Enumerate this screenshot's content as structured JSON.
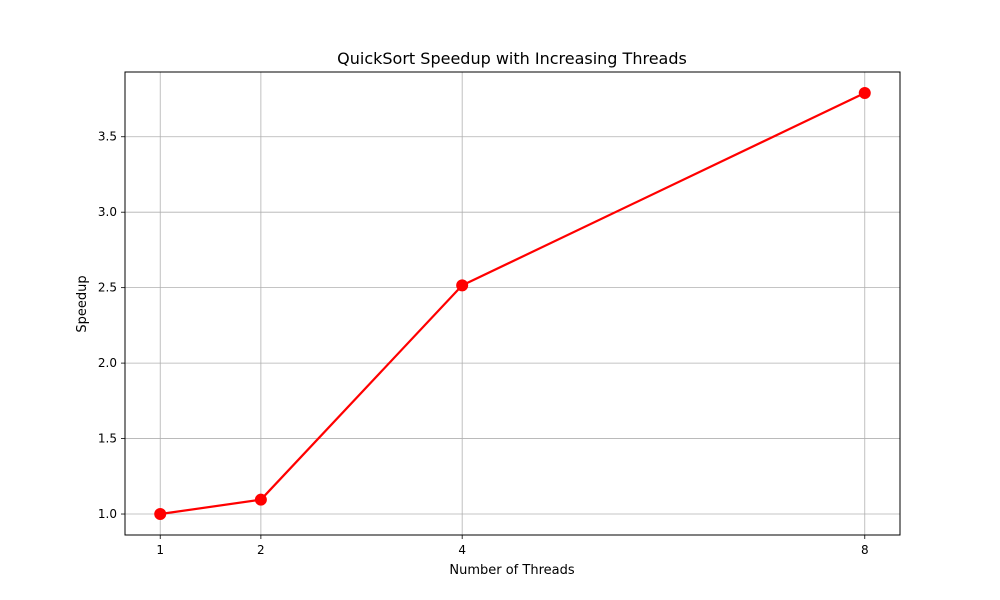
{
  "chart_data": {
    "type": "line",
    "title": "QuickSort Speedup with Increasing Threads",
    "xlabel": "Number of Threads",
    "ylabel": "Speedup",
    "x": [
      1,
      2,
      4,
      8
    ],
    "series": [
      {
        "values": [
          1.0,
          1.095,
          2.515,
          3.79
        ],
        "color": "#ff0000",
        "marker": "circle"
      }
    ],
    "xticks": [
      1,
      2,
      4,
      8
    ],
    "xtick_labels": [
      "1",
      "2",
      "4",
      "8"
    ],
    "yticks": [
      1.0,
      1.5,
      2.0,
      2.5,
      3.0,
      3.5
    ],
    "ytick_labels": [
      "1.0",
      "1.5",
      "2.0",
      "2.5",
      "3.0",
      "3.5"
    ],
    "xlim": [
      0.65,
      8.35
    ],
    "ylim": [
      0.861,
      3.929
    ],
    "grid": true,
    "grid_color": "#b0b0b0",
    "axis_color": "#000000"
  }
}
